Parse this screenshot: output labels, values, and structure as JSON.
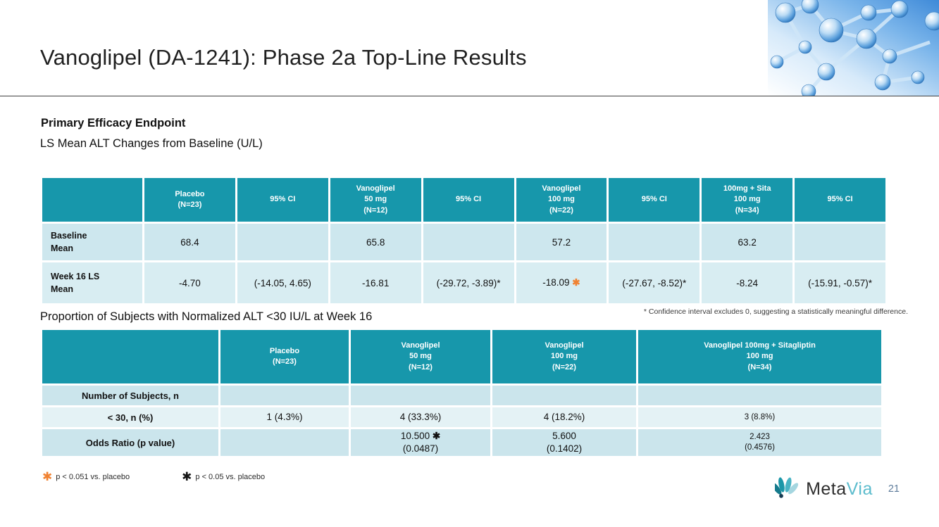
{
  "title": "Vanoglipel (DA-1241): Phase 2a Top-Line Results",
  "page_number": "21",
  "colors": {
    "header_teal": "#1797AB",
    "row_blue_dark": "#CBE5EC",
    "row_blue_light": "#E4F2F5",
    "accent_orange": "#F08232",
    "logo_teal": "#5cbccd"
  },
  "section1": {
    "heading": "Primary Efficacy Endpoint",
    "subheading": "LS Mean ALT Changes from Baseline (U/L)"
  },
  "table1": {
    "headers": [
      "",
      "Placebo\n(N=23)",
      "95% CI",
      "Vanoglipel\n50 mg\n(N=12)",
      "95% CI",
      "Vanoglipel\n100 mg\n(N=22)",
      "95% CI",
      "100mg + Sita\n100 mg\n(N=34)",
      "95% CI"
    ],
    "rows": [
      {
        "label": "Baseline\nMean",
        "cells": [
          "68.4",
          "",
          "65.8",
          "",
          "57.2",
          "",
          "63.2",
          ""
        ]
      },
      {
        "label": "Week 16 LS\nMean",
        "cells": [
          "-4.70",
          "(-14.05, 4.65)",
          "-16.81",
          "(-29.72, -3.89)*",
          "-18.09  ✱",
          "(-27.67, -8.52)*",
          "-8.24",
          "(-15.91, -0.57)*"
        ]
      }
    ]
  },
  "ci_footnote": "* Confidence interval excludes 0, suggesting a statistically meaningful difference.",
  "section2": {
    "heading": "Proportion of Subjects with Normalized ALT <30 IU/L at Week 16"
  },
  "table2": {
    "headers": [
      "",
      "Placebo\n(N=23)",
      "Vanoglipel\n50 mg\n(N=12)",
      "Vanoglipel\n100 mg\n(N=22)",
      "Vanoglipel 100mg + Sitagliptin\n100 mg\n(N=34)"
    ],
    "rows": [
      {
        "label": "Number of Subjects, n",
        "cells": [
          "",
          "",
          "",
          ""
        ]
      },
      {
        "label": "< 30, n (%)",
        "cells": [
          "1 (4.3%)",
          "4 (33.3%)",
          "4 (18.2%)",
          "3 (8.8%)"
        ]
      },
      {
        "label": "Odds Ratio (p value)",
        "cells": [
          "",
          "10.500  ✱\n(0.0487)",
          "5.600\n(0.1402)",
          "2.423\n(0.4576)"
        ]
      }
    ]
  },
  "footnotes": {
    "star_glyph": "✱",
    "orange": "p < 0.051 vs. placebo",
    "black": "p < 0.05 vs. placebo"
  },
  "logo": {
    "meta": "Meta",
    "via": "Via"
  }
}
